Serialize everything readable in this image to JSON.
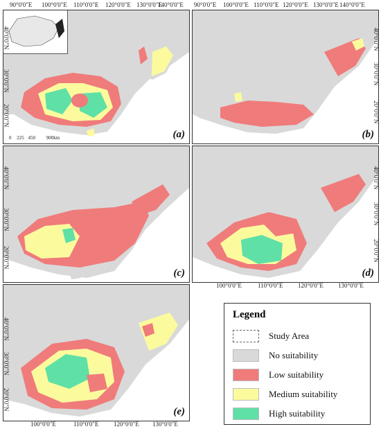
{
  "panels": {
    "a": {
      "label": "(a)"
    },
    "b": {
      "label": "(b)"
    },
    "c": {
      "label": "(c)"
    },
    "d": {
      "label": "(d)"
    },
    "e": {
      "label": "(e)"
    }
  },
  "ticks": {
    "top_a": [
      "90°0'0\"E",
      "100°0'0\"E",
      "110°0'0\"E",
      "120°0'0\"E",
      "130°0'0\"E",
      "140°0'0\"E"
    ],
    "top_b": [
      "90°0'0\"E",
      "100°0'0\"E",
      "110°0'0\"E",
      "120°0'0\"E",
      "130°0'0\"E",
      "140°0'0\"E"
    ],
    "bottom_d": [
      "100°0'0\"E",
      "110°0'0\"E",
      "120°0'0\"E",
      "130°0'0\"E"
    ],
    "bottom_e": [
      "100°0'0\"E",
      "110°0'0\"E",
      "120°0'0\"E",
      "130°0'0\"E"
    ],
    "lat_left": [
      "40°0'0\"N",
      "30°0'0\"N",
      "20°0'0\"N"
    ],
    "lat_right": [
      "40°0'0\"N",
      "30°0'0\"N",
      "20°0'0\"N"
    ]
  },
  "scale_bar": {
    "labels": [
      "0",
      "225",
      "450",
      "900km"
    ]
  },
  "legend": {
    "title": "Legend",
    "items": [
      {
        "label": "Study Area",
        "color": "#ffffff",
        "dashed": true
      },
      {
        "label": "No suitability",
        "color": "#d9d9d9"
      },
      {
        "label": "Low suitability",
        "color": "#f07b7b"
      },
      {
        "label": "Medium suitability",
        "color": "#fbfb9e"
      },
      {
        "label": "High suitability",
        "color": "#5fe0a7"
      }
    ]
  },
  "colors": {
    "land": "#d9d9d9",
    "low": "#f07b7b",
    "medium": "#fbfb9e",
    "high": "#5fe0a7",
    "sea": "#ffffff"
  }
}
